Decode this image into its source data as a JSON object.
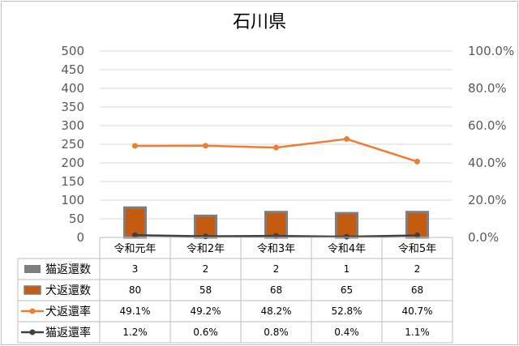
{
  "chart_data": {
    "type": "bar",
    "title": "石川県",
    "categories": [
      "令和元年",
      "令和2年",
      "令和3年",
      "令和4年",
      "令和5年"
    ],
    "left_axis": {
      "min": 0,
      "max": 500,
      "step": 50,
      "ticks": [
        "0",
        "50",
        "100",
        "150",
        "200",
        "250",
        "300",
        "350",
        "400",
        "450",
        "500"
      ]
    },
    "right_axis": {
      "min": 0,
      "max": 100,
      "step": 20,
      "ticks": [
        "0.0%",
        "20.0%",
        "40.0%",
        "60.0%",
        "80.0%",
        "100.0%"
      ]
    },
    "gridlines": true,
    "legend_placement": "data-table",
    "series": [
      {
        "name": "猫返還数",
        "kind": "bar",
        "axis": "left",
        "color": "#7f7f7f",
        "values": [
          3,
          2,
          2,
          1,
          2
        ],
        "labels": [
          "3",
          "2",
          "2",
          "1",
          "2"
        ]
      },
      {
        "name": "犬返還数",
        "kind": "bar",
        "axis": "left",
        "color": "#c55a11",
        "border": "#7f7f7f",
        "values": [
          80,
          58,
          68,
          65,
          68
        ],
        "labels": [
          "80",
          "58",
          "68",
          "65",
          "68"
        ]
      },
      {
        "name": "犬返還率",
        "kind": "line",
        "axis": "right",
        "color": "#ed7d31",
        "values": [
          49.1,
          49.2,
          48.2,
          52.8,
          40.7
        ],
        "labels": [
          "49.1%",
          "49.2%",
          "48.2%",
          "52.8%",
          "40.7%"
        ]
      },
      {
        "name": "猫返還率",
        "kind": "line",
        "axis": "right",
        "color": "#404040",
        "values": [
          1.2,
          0.6,
          0.8,
          0.4,
          1.1
        ],
        "labels": [
          "1.2%",
          "0.6%",
          "0.8%",
          "0.4%",
          "1.1%"
        ]
      }
    ]
  }
}
